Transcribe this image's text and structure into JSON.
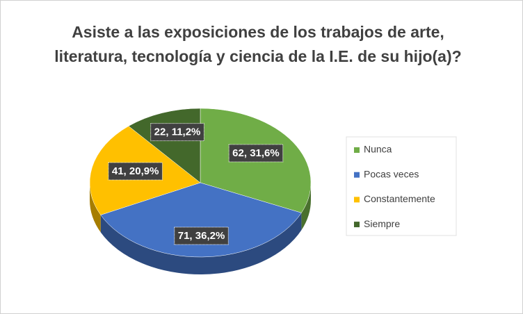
{
  "chart_data": {
    "type": "pie",
    "title": "Asiste a las exposiciones de los trabajos de arte, literatura, tecnología y ciencia de la I.E. de su hijo(a)?",
    "categories": [
      "Nunca",
      "Pocas veces",
      "Constantemente",
      "Siempre"
    ],
    "values": [
      62,
      71,
      41,
      22
    ],
    "value_labels": [
      "62, 31,6%",
      "71, 36,2%",
      "41, 20,9%",
      "22, 11,2%"
    ],
    "colors": [
      "#70ad47",
      "#4472c4",
      "#ffc000",
      "#43682b"
    ],
    "legend": "right"
  }
}
